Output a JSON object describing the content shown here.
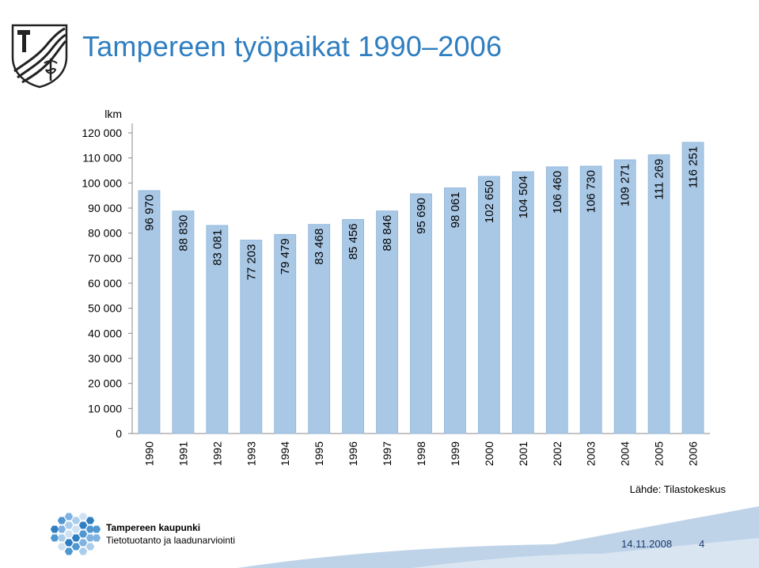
{
  "header": {
    "title": "Tampereen työpaikat 1990–2006"
  },
  "chart_data": {
    "type": "bar",
    "ylabel": "lkm",
    "ylim": [
      0,
      120000
    ],
    "ytick_step": 10000,
    "ytick_labels": [
      "0",
      "10 000",
      "20 000",
      "30 000",
      "40 000",
      "50 000",
      "60 000",
      "70 000",
      "80 000",
      "90 000",
      "100 000",
      "110 000",
      "120 000"
    ],
    "categories": [
      "1990",
      "1991",
      "1992",
      "1993",
      "1994",
      "1995",
      "1996",
      "1997",
      "1998",
      "1999",
      "2000",
      "2001",
      "2002",
      "2003",
      "2004",
      "2005",
      "2006"
    ],
    "values": [
      96970,
      88830,
      83081,
      77203,
      79479,
      83468,
      85456,
      88846,
      95690,
      98061,
      102650,
      104504,
      106460,
      106730,
      109271,
      111269,
      116251
    ],
    "value_labels": [
      "96 970",
      "88 830",
      "83 081",
      "77 203",
      "79 479",
      "83 468",
      "85 456",
      "88 846",
      "95 690",
      "98 061",
      "102 650",
      "104 504",
      "106 460",
      "106 730",
      "109 271",
      "111 269",
      "116 251"
    ],
    "bar_color": "#a9c8e6",
    "bar_edge_color": "#8eb4da",
    "grid": false,
    "legend": "none"
  },
  "source": "Lähde: Tilastokeskus",
  "footer": {
    "org_name": "Tampereen kaupunki",
    "org_unit": "Tietotuotanto ja laadunarviointi",
    "date": "14.11.2008",
    "page": "4",
    "band_color": "#bfd3e8",
    "accent_color": "#2f7ec0"
  },
  "logo": {
    "icon": "tampere-coat-of-arms-icon",
    "footer_icon": "hexagon-cluster-logo-icon"
  }
}
